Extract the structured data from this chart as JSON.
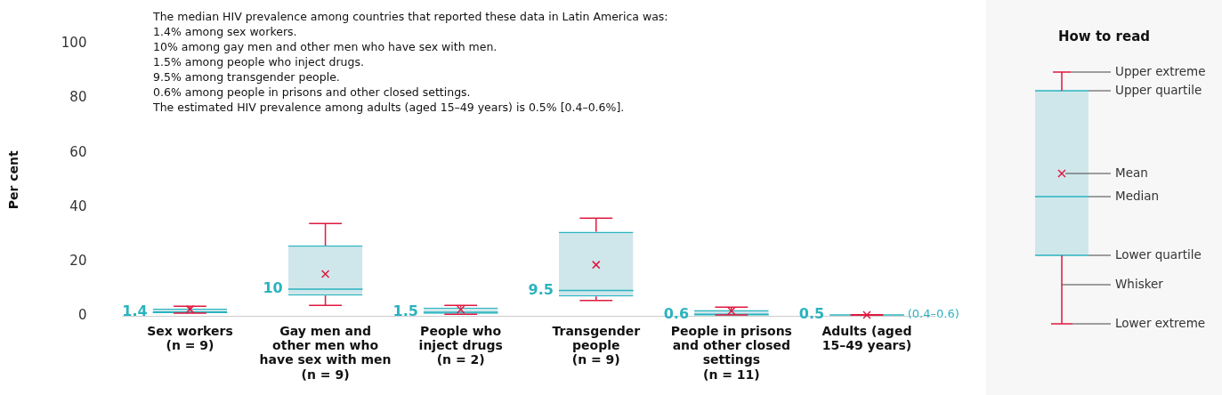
{
  "chart_data": {
    "type": "box",
    "ylabel": "Per cent",
    "legend_title": "How to read",
    "categories": [
      "Sex workers\n(n = 9)",
      "Gay men and\nother men who\nhave sex with men\n(n = 9)",
      "People who\ninject drugs\n(n = 2)",
      "Transgender\npeople\n(n = 9)",
      "People in prisons\nand other closed\nsettings\n(n = 11)",
      "Adults (aged\n15–49 years)"
    ],
    "series": [
      {
        "color": "#2ab3bf",
        "boxes": [
          {
            "low": 1.2,
            "q1": 1.3,
            "median": 1.4,
            "q3": 2.8,
            "high": 3.7,
            "mean": 2.6
          },
          {
            "low": 4,
            "q1": 7.6,
            "median": 10,
            "q3": 26,
            "high": 34,
            "mean": 15.5
          },
          {
            "low": 0.8,
            "q1": 0.9,
            "median": 1.5,
            "q3": 3.2,
            "high": 4,
            "mean": 2.5
          },
          {
            "low": 5.8,
            "q1": 7.3,
            "median": 9.5,
            "q3": 31,
            "high": 36,
            "mean": 18.9
          },
          {
            "low": 0.5,
            "q1": 0.6,
            "median": 0.6,
            "q3": 2.3,
            "high": 3.4,
            "mean": 2
          },
          {
            "low": 0.4,
            "q1": 0.5,
            "median": 0.5,
            "q3": 0.5,
            "high": 0.6,
            "mean": 0.5
          }
        ],
        "value_labels": [
          "1.4",
          "10",
          "1.5",
          "9.5",
          "0.6",
          "0.5"
        ]
      }
    ],
    "ylim": [
      0,
      100
    ],
    "yticks": [
      0,
      20,
      40,
      60,
      80,
      100
    ],
    "grid": false,
    "annotations": [
      "The median HIV prevalence among countries that reported these data in Latin America was:\n1.4% among sex workers.\n10% among gay men and other men who have sex with men.\n1.5% among people who inject drugs.\n9.5% among transgender people.\n0.6% among people in prisons and other closed settings.\nThe estimated HIV prevalence among adults (aged 15–49 years) is 0.5% [0.4–0.6%].",
      "(0.4–0.6)",
      "Upper extreme",
      "Upper quartile",
      "Mean",
      "Median",
      "Lower quartile",
      "Whisker",
      "Lower extreme"
    ]
  }
}
